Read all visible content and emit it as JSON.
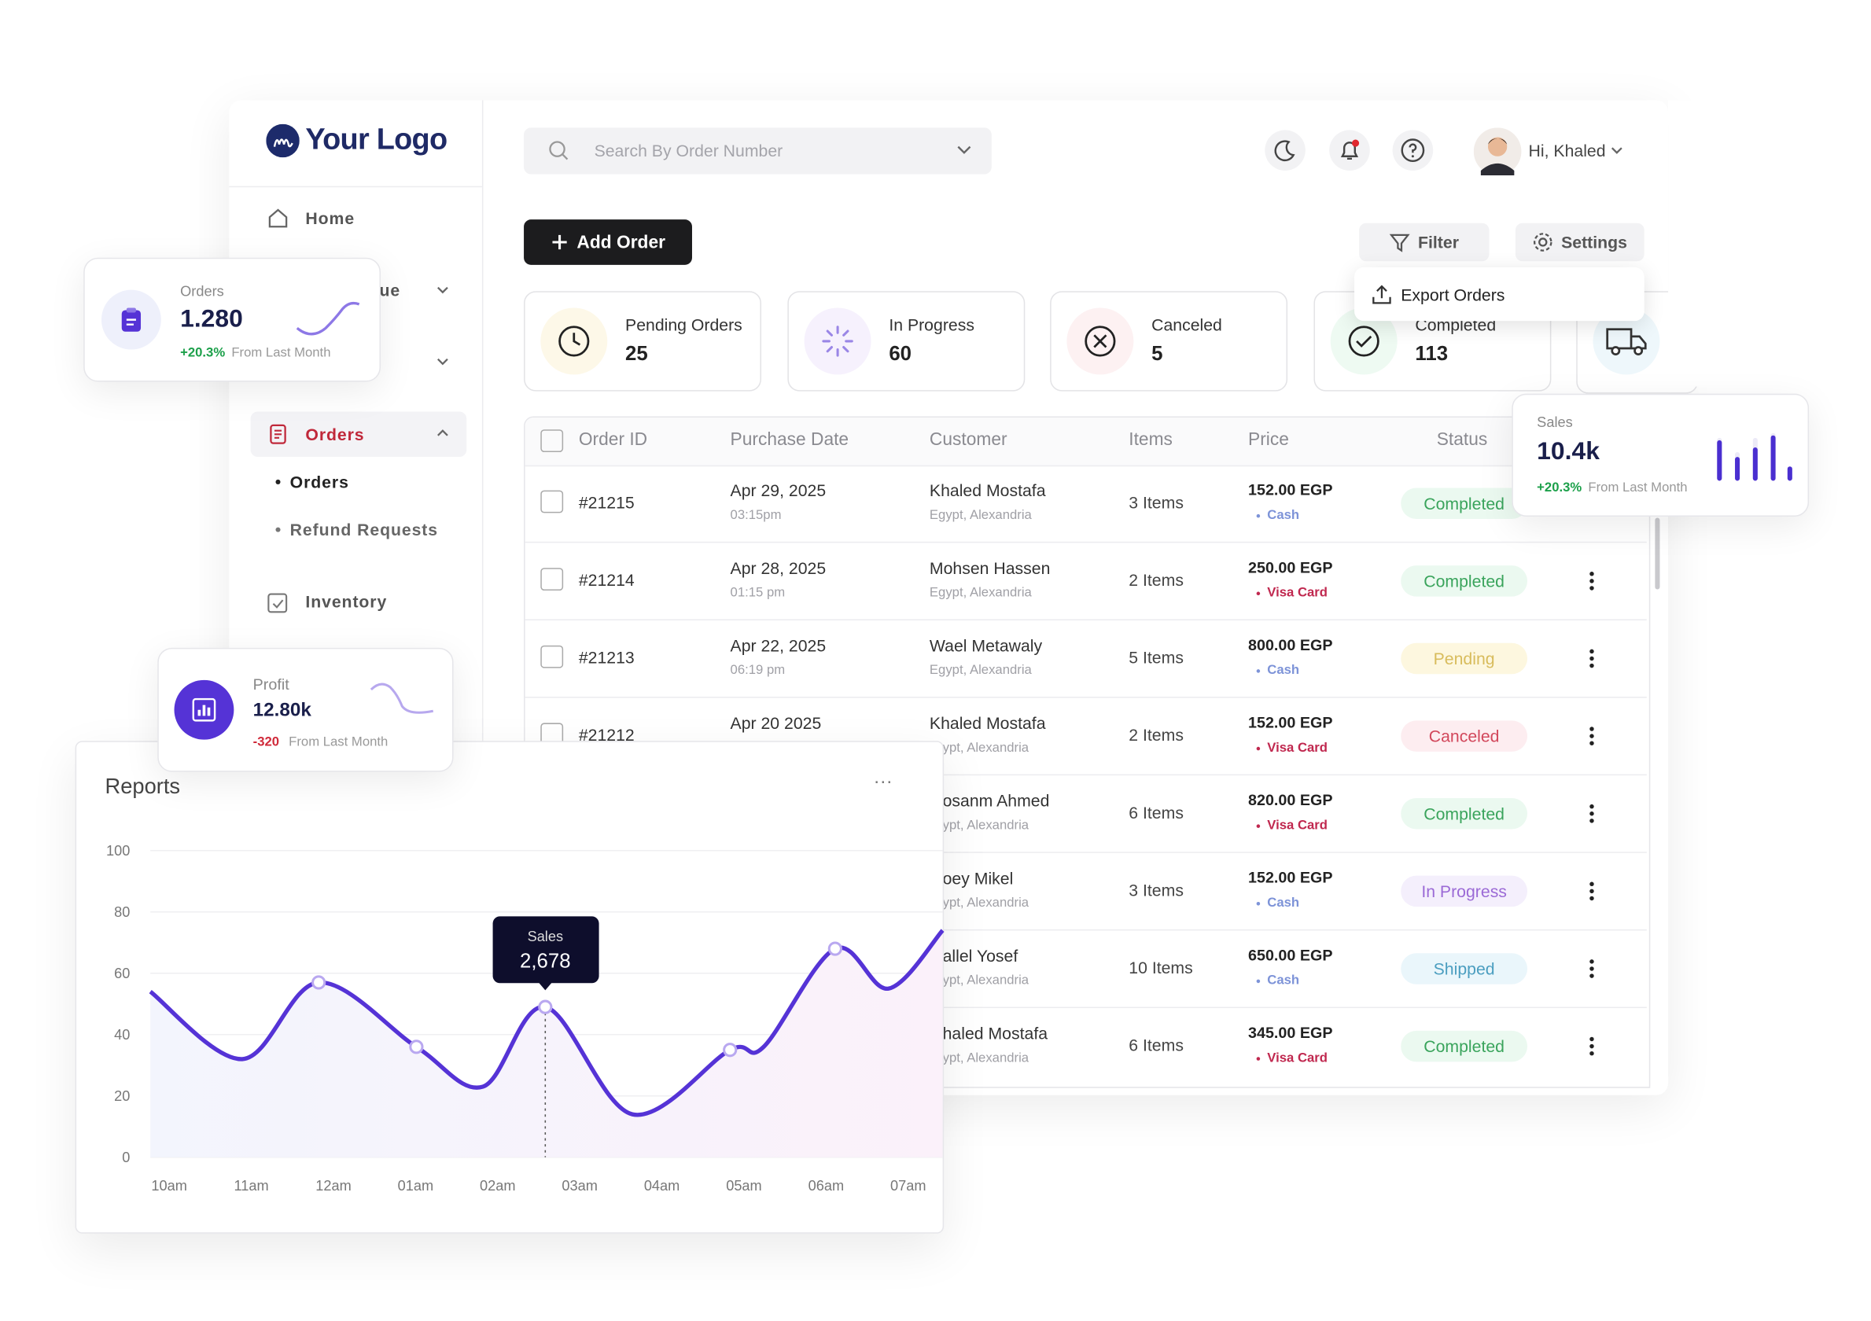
{
  "header": {
    "search_placeholder": "Search By Order Number",
    "greeting": "Hi, Khaled"
  },
  "sidebar": {
    "logo": "Your Logo",
    "nav": [
      "Home",
      "ue",
      "Orders",
      "Inventory"
    ],
    "sub": [
      "Orders",
      "Refund Requests"
    ]
  },
  "toolbar": {
    "add": "Add Order",
    "filter": "Filter",
    "settings": "Settings",
    "menu": [
      "Export Orders"
    ]
  },
  "stats": [
    {
      "label": "Pending Orders",
      "value": 25,
      "icon_bg": "#fdf8e8"
    },
    {
      "label": "In Progress",
      "value": 60,
      "icon_bg": "#f6f1fd"
    },
    {
      "label": "Canceled",
      "value": 5,
      "icon_bg": "#fdf1f2"
    },
    {
      "label": "Completed",
      "value": 113,
      "icon_bg": "#eefaf2"
    }
  ],
  "table": {
    "columns": [
      "Order ID",
      "Purchase Date",
      "Customer",
      "Items",
      "Price",
      "Status"
    ],
    "rows": [
      {
        "id": "#21215",
        "date": "Apr 29, 2025",
        "time": "03:15pm",
        "customer": "Khaled Mostafa",
        "location": "Egypt, Alexandria",
        "items": "3 Items",
        "price": "152.00 EGP",
        "payment": "Cash",
        "payment_color": "#7d93d8",
        "status": "Completed",
        "status_color": "#3aa45c",
        "status_bg": "#ebf9f0"
      },
      {
        "id": "#21214",
        "date": "Apr 28, 2025",
        "time": "01:15 pm",
        "customer": "Mohsen Hassen",
        "location": "Egypt, Alexandria",
        "items": "2 Items",
        "price": "250.00 EGP",
        "payment": "Visa Card",
        "payment_color": "#c0284f",
        "status": "Completed",
        "status_color": "#3aa45c",
        "status_bg": "#ebf9f0"
      },
      {
        "id": "#21213",
        "date": "Apr 22, 2025",
        "time": "06:19 pm",
        "customer": "Wael Metawaly",
        "location": "Egypt, Alexandria",
        "items": "5 Items",
        "price": "800.00 EGP",
        "payment": "Cash",
        "payment_color": "#7d93d8",
        "status": "Pending",
        "status_color": "#d8bc5c",
        "status_bg": "#fdf7df"
      },
      {
        "id": "#21212",
        "date": "Apr 20 2025",
        "time": null,
        "customer": "Khaled Mostafa",
        "location": "ypt, Alexandria",
        "items": "2 Items",
        "price": "152.00 EGP",
        "payment": "Visa Card",
        "payment_color": "#c0284f",
        "status": "Canceled",
        "status_color": "#d2475b",
        "status_bg": "#fdedf0"
      },
      {
        "id": null,
        "date": null,
        "time": null,
        "customer": "osanm Ahmed",
        "location": "ypt, Alexandria",
        "items": "6 Items",
        "price": "820.00 EGP",
        "payment": "Visa Card",
        "payment_color": "#c0284f",
        "status": "Completed",
        "status_color": "#3aa45c",
        "status_bg": "#ebf9f0"
      },
      {
        "id": null,
        "date": null,
        "time": null,
        "customer": "oey Mikel",
        "location": "ypt, Alexandria",
        "items": "3 Items",
        "price": "152.00 EGP",
        "payment": "Cash",
        "payment_color": "#7d93d8",
        "status": "In Progress",
        "status_color": "#9b6ad6",
        "status_bg": "#f4effc"
      },
      {
        "id": null,
        "date": null,
        "time": null,
        "customer": "allel Yosef",
        "location": "ypt, Alexandria",
        "items": "10 Items",
        "price": "650.00 EGP",
        "payment": "Cash",
        "payment_color": "#7d93d8",
        "status": "Shipped",
        "status_color": "#4b9ec0",
        "status_bg": "#eaf6fb"
      },
      {
        "id": null,
        "date": null,
        "time": null,
        "customer": "haled Mostafa",
        "location": "ypt, Alexandria",
        "items": "6 Items",
        "price": "345.00 EGP",
        "payment": "Visa Card",
        "payment_color": "#c0284f",
        "status": "Completed",
        "status_color": "#3aa45c",
        "status_bg": "#ebf9f0"
      }
    ]
  },
  "cards": {
    "orders": {
      "label": "Orders",
      "value": "1.280",
      "change": "+20.3%",
      "note": "From Last Month"
    },
    "sales": {
      "label": "Sales",
      "value": "10.4k",
      "change": "+20.3%",
      "note": "From Last Month"
    },
    "profit": {
      "label": "Profit",
      "value": "12.80k",
      "change": "-320",
      "note": "From Last Month"
    }
  },
  "chart_data": {
    "type": "line",
    "title": "Reports",
    "categories": [
      "10am",
      "11am",
      "12am",
      "01am",
      "02am",
      "03am",
      "04am",
      "05am",
      "06am",
      "07am"
    ],
    "series": [
      {
        "name": "Sales",
        "color": "#5533d6",
        "x": [
          -0.23,
          0.89,
          1.82,
          3.01,
          3.82,
          4.58,
          5.64,
          6.83,
          7.24,
          8.11,
          8.76,
          9.42
        ],
        "values": [
          54,
          32,
          57,
          36,
          23,
          49,
          14,
          35,
          36,
          68,
          55,
          74
        ]
      }
    ],
    "xlim": [
      -0.23,
      9.42
    ],
    "ylim": [
      0,
      100
    ],
    "yticks": [
      0,
      20,
      40,
      60,
      80,
      100
    ],
    "grid": true,
    "annotation": "2,678"
  }
}
